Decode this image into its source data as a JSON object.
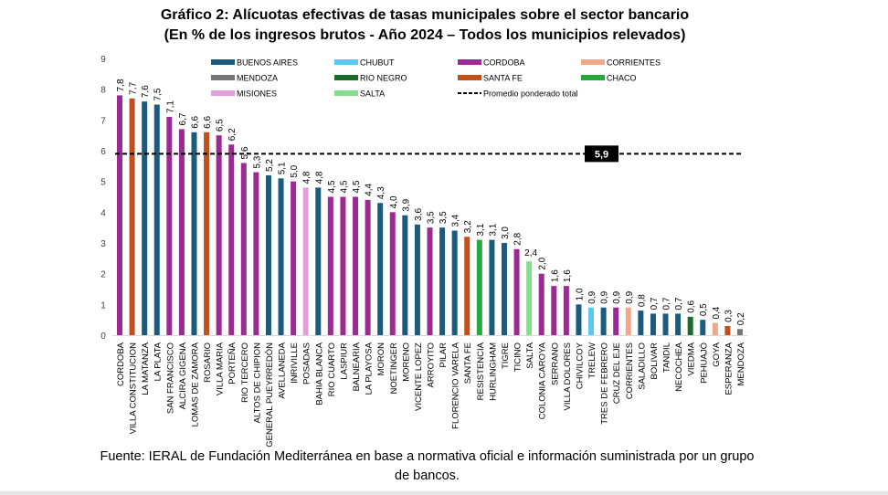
{
  "title_line1": "Gráfico 2: Alícuotas efectivas de tasas municipales sobre el sector bancario",
  "title_line2": "(En % de los ingresos brutos - Año 2024 – Todos los municipios relevados)",
  "source_text": "Fuente: IERAL de Fundación Mediterránea en base a normativa oficial e información suministrada por un grupo de bancos.",
  "colors": {
    "BUENOS AIRES": "#1a5b7e",
    "CHUBUT": "#5bc8ef",
    "CORDOBA": "#9b2a92",
    "CORRIENTES": "#f0a88a",
    "MENDOZA": "#767676",
    "RIO NEGRO": "#1c6b2c",
    "SANTA FE": "#c0501c",
    "CHACO": "#27a83c",
    "MISIONES": "#e29fdc",
    "SALTA": "#85de8e"
  },
  "chart_data": {
    "type": "bar",
    "title": "Gráfico 2: Alícuotas efectivas de tasas municipales sobre el sector bancario (En % de los ingresos brutos - Año 2024 – Todos los municipios relevados)",
    "xlabel": "",
    "ylabel": "",
    "ylim": [
      0,
      9
    ],
    "yticks": [
      "0",
      "1",
      "2",
      "3",
      "4",
      "5",
      "6",
      "7",
      "8",
      "9"
    ],
    "grid": false,
    "legend_position": "top",
    "legend": [
      {
        "name": "BUENOS AIRES",
        "type": "bar"
      },
      {
        "name": "CHUBUT",
        "type": "bar"
      },
      {
        "name": "CORDOBA",
        "type": "bar"
      },
      {
        "name": "CORRIENTES",
        "type": "bar"
      },
      {
        "name": "MENDOZA",
        "type": "bar"
      },
      {
        "name": "RIO NEGRO",
        "type": "bar"
      },
      {
        "name": "SANTA FE",
        "type": "bar"
      },
      {
        "name": "CHACO",
        "type": "bar"
      },
      {
        "name": "MISIONES",
        "type": "bar"
      },
      {
        "name": "SALTA",
        "type": "bar"
      },
      {
        "name": "Promedio ponderado total",
        "type": "dashed-line"
      }
    ],
    "reference_line": {
      "name": "Promedio ponderado total",
      "value": 5.9,
      "label": "5,9"
    },
    "categories": [
      "CORDOBA",
      "VILLA CONSTITUCION",
      "LA MATANZA",
      "LA PLATA",
      "SAN FRANCISCO",
      "ALCIRA GIGENA",
      "LOMAS DE ZAMORA",
      "ROSARIO",
      "VILLA MARIA",
      "PORTEÑA",
      "RIO TERCERO",
      "ALTOS DE CHIPION",
      "GENERAL PUEYRREDÓN",
      "AVELLANEDA",
      "INRIVILLE",
      "POSADAS",
      "BAHIA BLANCA",
      "RIO CUARTO",
      "LASPIUR",
      "BALNEARIA",
      "LA PLAYOSA",
      "MORON",
      "NOETINGER",
      "MORENO",
      "VICENTE LOPEZ",
      "ARROYITO",
      "PILAR",
      "FLORENCIO VARELA",
      "SANTA FE",
      "RESISTENCIA",
      "HURLINGHAM",
      "TIGRE",
      "TICINO",
      "SALTA",
      "COLONIA CAROYA",
      "SERRANO",
      "VILLA DOLORES",
      "CHIVILCOY",
      "TRELEW",
      "TRES DE FEBRERO",
      "CRUZ DEL EJE",
      "CORRIENTES",
      "SALADILLO",
      "BOLIVAR",
      "TANDIL",
      "NECOCHEA",
      "VIEDMA",
      "PEHUAJÓ",
      "GOYA",
      "ESPERANZA",
      "MENDOZA"
    ],
    "values": [
      7.8,
      7.7,
      7.6,
      7.5,
      7.1,
      6.7,
      6.6,
      6.6,
      6.5,
      6.2,
      5.6,
      5.3,
      5.2,
      5.1,
      5.0,
      4.8,
      4.8,
      4.5,
      4.5,
      4.5,
      4.4,
      4.3,
      4.0,
      3.9,
      3.6,
      3.5,
      3.5,
      3.4,
      3.2,
      3.1,
      3.1,
      3.0,
      2.8,
      2.4,
      2.0,
      1.6,
      1.6,
      1.0,
      0.9,
      0.9,
      0.9,
      0.9,
      0.8,
      0.7,
      0.7,
      0.7,
      0.6,
      0.5,
      0.4,
      0.3,
      0.2
    ],
    "value_labels": [
      "7,8",
      "7,7",
      "7,6",
      "7,5",
      "7,1",
      "6,7",
      "6,6",
      "6,6",
      "6,5",
      "6,2",
      "5,6",
      "5,3",
      "5,2",
      "5,1",
      "5,0",
      "4,8",
      "4,8",
      "4,5",
      "4,5",
      "4,5",
      "4,4",
      "4,3",
      "4,0",
      "3,9",
      "3,6",
      "3,5",
      "3,5",
      "3,4",
      "3,2",
      "3,1",
      "3,1",
      "3,0",
      "2,8",
      "2,4",
      "2,0",
      "1,6",
      "1,6",
      "1,0",
      "0,9",
      "0,9",
      "0,9",
      "0,9",
      "0,8",
      "0,7",
      "0,7",
      "0,7",
      "0,6",
      "0,5",
      "0,4",
      "0,3",
      "0,2"
    ],
    "province": [
      "CORDOBA",
      "SANTA FE",
      "BUENOS AIRES",
      "BUENOS AIRES",
      "CORDOBA",
      "CORDOBA",
      "BUENOS AIRES",
      "SANTA FE",
      "CORDOBA",
      "CORDOBA",
      "CORDOBA",
      "CORDOBA",
      "BUENOS AIRES",
      "BUENOS AIRES",
      "CORDOBA",
      "MISIONES",
      "BUENOS AIRES",
      "CORDOBA",
      "CORDOBA",
      "CORDOBA",
      "CORDOBA",
      "BUENOS AIRES",
      "CORDOBA",
      "BUENOS AIRES",
      "BUENOS AIRES",
      "CORDOBA",
      "BUENOS AIRES",
      "BUENOS AIRES",
      "SANTA FE",
      "CHACO",
      "BUENOS AIRES",
      "BUENOS AIRES",
      "CORDOBA",
      "SALTA",
      "CORDOBA",
      "CORDOBA",
      "CORDOBA",
      "BUENOS AIRES",
      "CHUBUT",
      "BUENOS AIRES",
      "CORDOBA",
      "CORRIENTES",
      "BUENOS AIRES",
      "BUENOS AIRES",
      "BUENOS AIRES",
      "BUENOS AIRES",
      "RIO NEGRO",
      "BUENOS AIRES",
      "CORRIENTES",
      "SANTA FE",
      "MENDOZA"
    ]
  }
}
